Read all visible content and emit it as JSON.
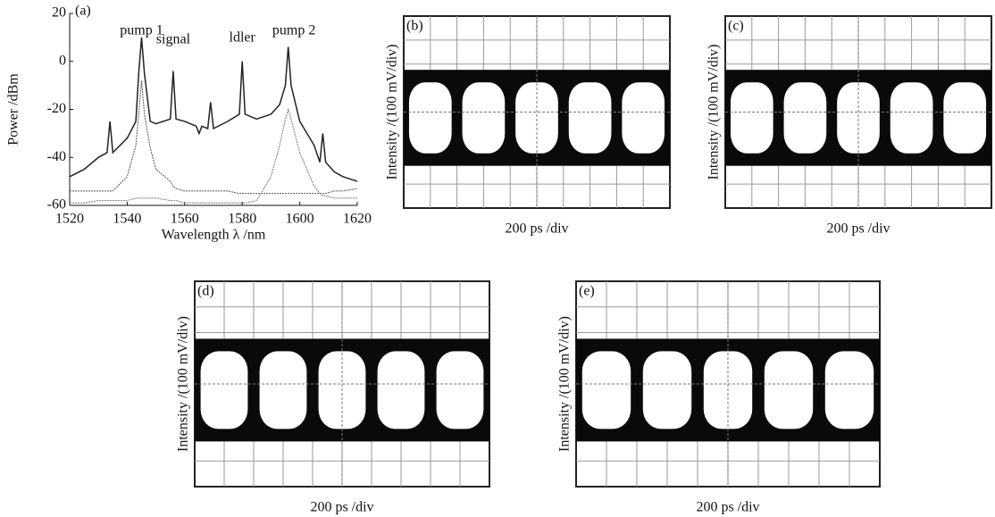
{
  "chart_data": [
    {
      "type": "line",
      "panel": "(a)",
      "xlabel": "Wavelength λ /nm",
      "ylabel": "Power /dBm",
      "annotations": [
        "pump 1",
        "signal",
        "ldler",
        "pump 2"
      ],
      "xlim": [
        1520,
        1620
      ],
      "ylim": [
        -60,
        20
      ],
      "xticks": [
        1520,
        1540,
        1560,
        1580,
        1600,
        1620
      ],
      "yticks": [
        -60,
        -40,
        -20,
        0,
        20
      ],
      "x": [
        1520,
        1525,
        1530,
        1533,
        1534,
        1535,
        1540,
        1543,
        1544,
        1545,
        1546,
        1548,
        1550,
        1555,
        1556,
        1557,
        1560,
        1564,
        1565,
        1566,
        1568,
        1569,
        1570,
        1575,
        1579,
        1580,
        1581,
        1585,
        1590,
        1593,
        1595,
        1596,
        1597,
        1600,
        1605,
        1607,
        1608,
        1609,
        1612,
        1615,
        1620
      ],
      "series": [
        {
          "color": "#222",
          "values": [
            -48,
            -45,
            -40,
            -38,
            -25,
            -38,
            -32,
            -25,
            -5,
            10,
            -5,
            -25,
            -26,
            -24,
            -4,
            -24,
            -25,
            -27,
            -30,
            -27,
            -28,
            -17,
            -28,
            -25,
            -22,
            0,
            -22,
            -24,
            -22,
            -18,
            -10,
            6,
            -10,
            -25,
            -35,
            -42,
            -30,
            -42,
            -46,
            -48,
            -50
          ]
        },
        {
          "color": "#555",
          "values": [
            -54,
            -54,
            -54,
            -54,
            -54,
            -54,
            -48,
            -35,
            -22,
            -8,
            -22,
            -36,
            -45,
            -50,
            -52,
            -53,
            -54,
            -54,
            -54,
            -54,
            -54,
            -54,
            -54,
            -54,
            -55,
            -55,
            -55,
            -55,
            -55,
            -55,
            -55,
            -55,
            -55,
            -55,
            -55,
            -55,
            -55,
            -55,
            -54,
            -54,
            -53
          ]
        },
        {
          "color": "#777",
          "values": [
            -59,
            -59,
            -58,
            -58,
            -58,
            -58,
            -58,
            -57,
            -57,
            -57,
            -57,
            -57,
            -57,
            -58,
            -58,
            -58,
            -59,
            -59,
            -59,
            -59,
            -59,
            -59,
            -59,
            -59,
            -59,
            -59,
            -59,
            -58,
            -48,
            -35,
            -24,
            -20,
            -24,
            -38,
            -52,
            -55,
            -56,
            -56,
            -57,
            -57,
            -57
          ]
        }
      ]
    },
    {
      "type": "eye",
      "panel": "(b)",
      "xlabel": "200 ps /div",
      "ylabel": "Intensity /(100 mV/div)"
    },
    {
      "type": "eye",
      "panel": "(c)",
      "xlabel": "200 ps /div",
      "ylabel": "Intensity /(100 mV/div)"
    },
    {
      "type": "eye",
      "panel": "(d)",
      "xlabel": "200 ps /div",
      "ylabel": "Intensity /(100 mV/div)"
    },
    {
      "type": "eye",
      "panel": "(e)",
      "xlabel": "200 ps /div",
      "ylabel": "Intensity /(100 mV/div)"
    }
  ]
}
